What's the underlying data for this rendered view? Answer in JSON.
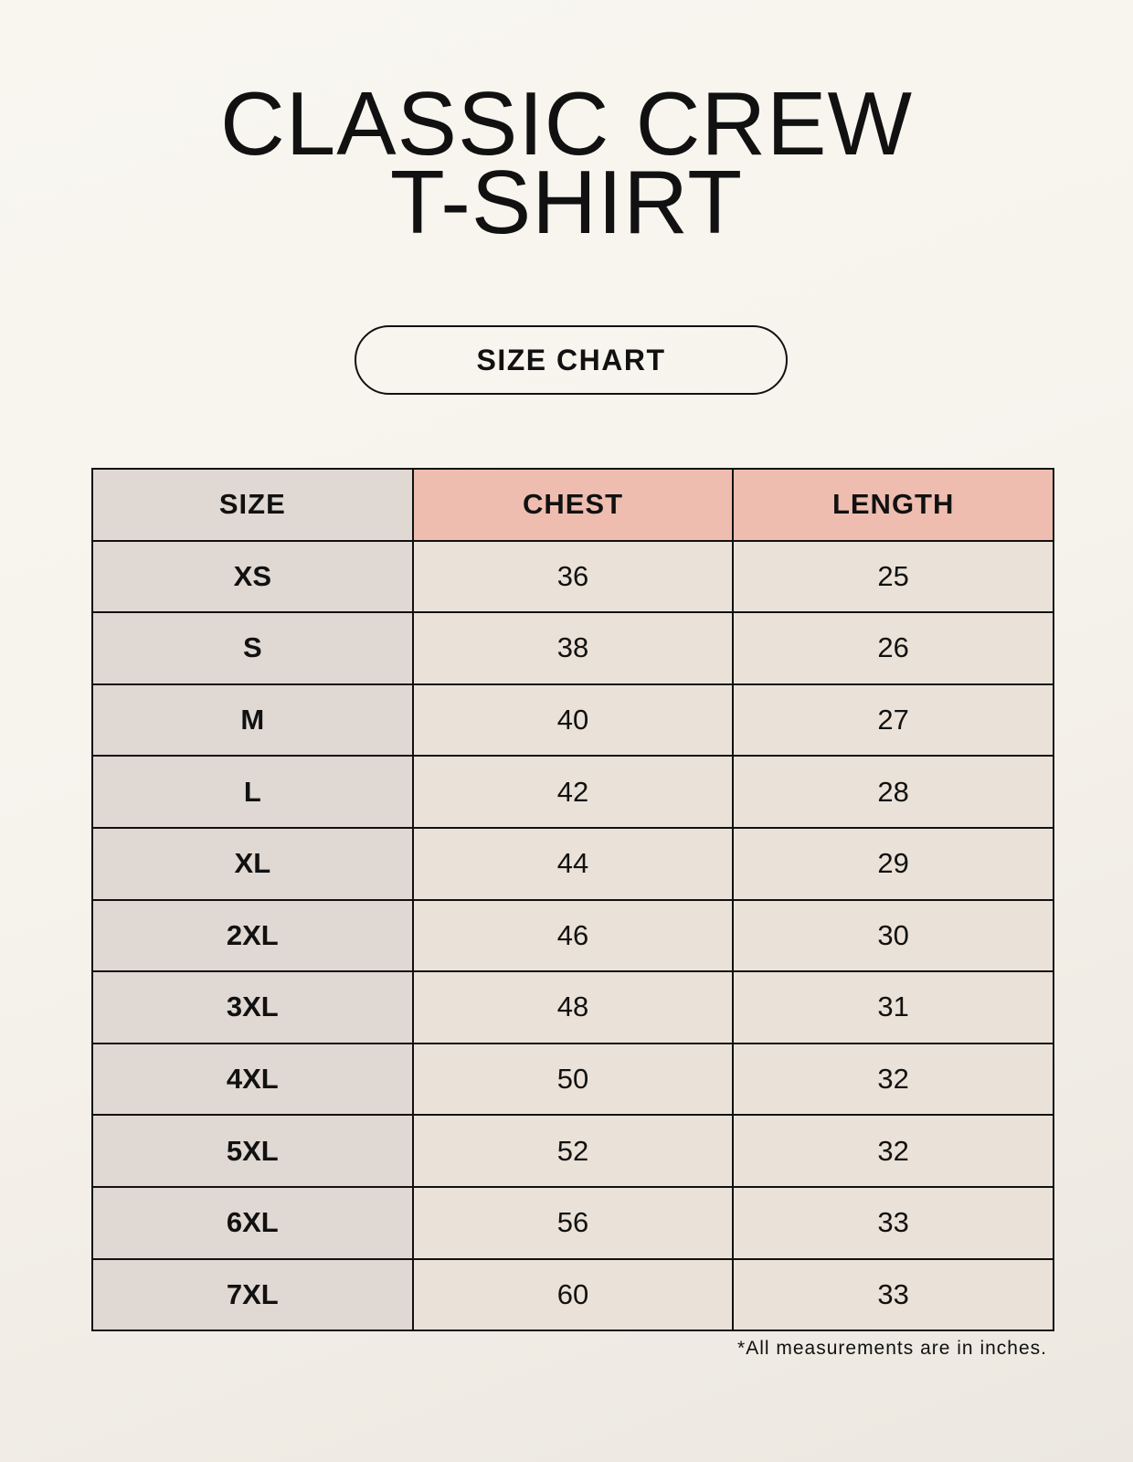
{
  "title_line1": "CLASSIC CREW",
  "title_line2": "T-SHIRT",
  "badge": "SIZE CHART",
  "table": {
    "headers": [
      "SIZE",
      "CHEST",
      "LENGTH"
    ],
    "rows": [
      [
        "XS",
        "36",
        "25"
      ],
      [
        "S",
        "38",
        "26"
      ],
      [
        "M",
        "40",
        "27"
      ],
      [
        "L",
        "42",
        "28"
      ],
      [
        "XL",
        "44",
        "29"
      ],
      [
        "2XL",
        "46",
        "30"
      ],
      [
        "3XL",
        "48",
        "31"
      ],
      [
        "4XL",
        "50",
        "32"
      ],
      [
        "5XL",
        "52",
        "32"
      ],
      [
        "6XL",
        "56",
        "33"
      ],
      [
        "7XL",
        "60",
        "33"
      ]
    ]
  },
  "footnote": "*All measurements are in inches.",
  "colors": {
    "header_accent": "#eebdaf",
    "size_column": "#e0d8d2",
    "value_cells": "#eae2d8"
  }
}
